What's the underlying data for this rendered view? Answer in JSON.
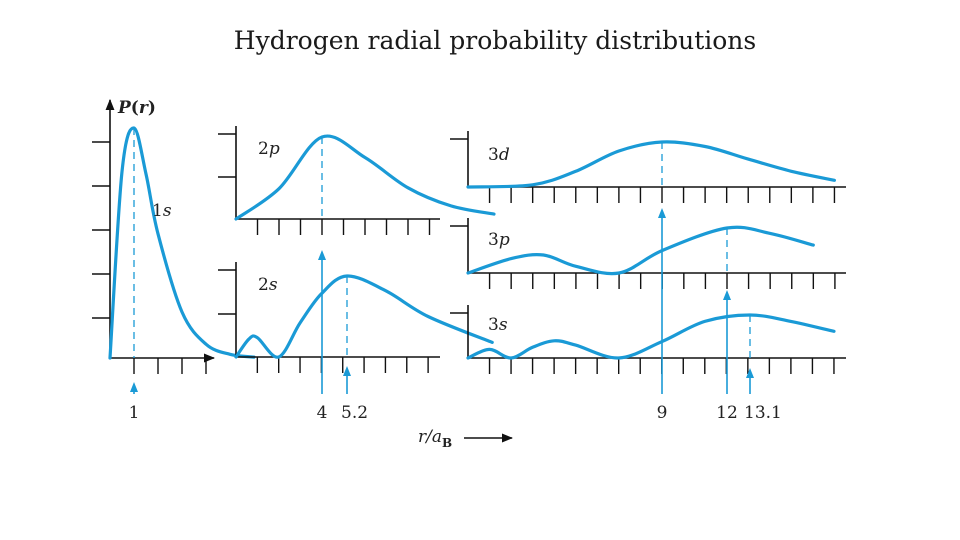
{
  "title": "Hydrogen radial probability distributions",
  "chart_data": {
    "type": "line",
    "ylabel": "P(r)",
    "xlabel_prefix": "r/a",
    "xlabel_sub": "B",
    "series": [
      {
        "name": "1s",
        "peak": 1,
        "x": [
          0,
          0.5,
          1,
          1.5,
          2,
          3,
          4,
          5,
          6
        ],
        "y": [
          0,
          0.81,
          1,
          0.8,
          0.54,
          0.2,
          0.06,
          0.016,
          0.004
        ]
      },
      {
        "name": "2p",
        "peak": 4,
        "x": [
          0,
          2,
          4,
          6,
          8,
          10,
          12
        ],
        "y": [
          0,
          0.37,
          1,
          0.75,
          0.38,
          0.16,
          0.06
        ]
      },
      {
        "name": "2s",
        "peak": 5.2,
        "x": [
          0,
          0.6,
          1,
          2,
          3,
          4,
          5.2,
          7,
          9,
          12
        ],
        "y": [
          0,
          0.22,
          0.24,
          0,
          0.42,
          0.78,
          1,
          0.82,
          0.5,
          0.18
        ]
      },
      {
        "name": "3d",
        "peak": 9,
        "x": [
          0,
          3,
          5,
          7,
          9,
          11,
          13,
          15,
          17
        ],
        "y": [
          0,
          0.05,
          0.35,
          0.8,
          1,
          0.9,
          0.62,
          0.35,
          0.15
        ]
      },
      {
        "name": "3p",
        "peak": 12,
        "x": [
          0,
          2,
          3.5,
          5,
          7,
          9,
          12,
          14,
          16
        ],
        "y": [
          0,
          0.32,
          0.4,
          0.15,
          0,
          0.5,
          1,
          0.88,
          0.62
        ]
      },
      {
        "name": "3s",
        "peak": 13.1,
        "x": [
          0,
          1,
          2,
          3,
          4,
          5,
          7,
          9,
          11,
          13.1,
          15,
          17
        ],
        "y": [
          0,
          0.2,
          0,
          0.25,
          0.4,
          0.3,
          0,
          0.38,
          0.85,
          1,
          0.85,
          0.62
        ]
      }
    ],
    "annotations": [
      {
        "value": 1,
        "label": "1"
      },
      {
        "value": 4,
        "label": "4"
      },
      {
        "value": 5.2,
        "label": "5.2"
      },
      {
        "value": 9,
        "label": "9"
      },
      {
        "value": 12,
        "label": "12"
      },
      {
        "value": 13.1,
        "label": "13.1"
      }
    ]
  }
}
